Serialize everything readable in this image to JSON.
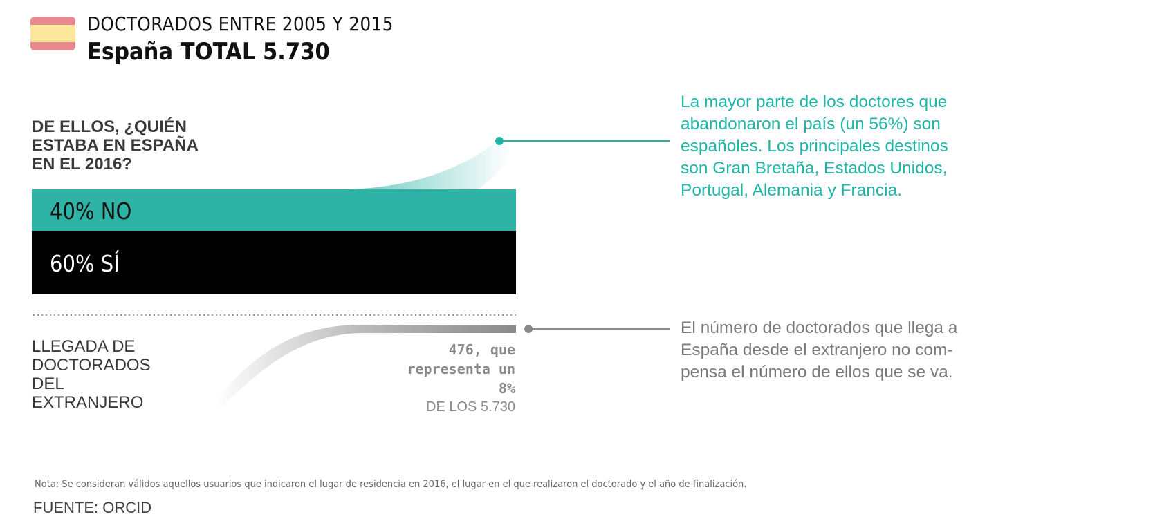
{
  "header": {
    "title": "DOCTORADOS ENTRE 2005 Y 2015",
    "subtitle": "España TOTAL 5.730",
    "flag_colors": [
      "#e68a8f",
      "#fde79c",
      "#e68a8f"
    ]
  },
  "question": "DE ELLOS, ¿QUIÉN\nESTABA EN ESPAÑA\nEN EL 2016?",
  "chart_data": {
    "type": "bar",
    "orientation": "horizontal-stacked",
    "total": 5730,
    "categories": [
      "NO",
      "SÍ"
    ],
    "values": [
      40,
      60
    ],
    "labels": [
      "40% NO",
      "60% SÍ"
    ],
    "colors": [
      "#2fb3a6",
      "#000000"
    ],
    "arrival": {
      "value": 476,
      "percent": 8,
      "color": "#8a8a8a"
    }
  },
  "annotations": {
    "emigrants": "La mayor parte de los doctores que\nabandonaron el país (un 56%) son\nespañoles. Los principales destinos\nson Gran Bretaña, Estados Unidos,\nPortugal, Alemania y Francia.",
    "immigrants": "El número de doctorados que llega a\nEspaña desde el extranjero no com-\npensa el número de ellos que se va."
  },
  "arrival_label": "LLEGADA DE\nDOCTORADOS\nDEL\nEXTRANJERO",
  "arrival_value_text": "476, que\nrepresenta un\n8%",
  "arrival_total_text": "DE LOS 5.730",
  "note": "Nota: Se consideran válidos aquellos usuarios  que indicaron el lugar de residencia en 2016, el lugar en el que realizaron el doctorado y el año de finalización.",
  "source": "FUENTE: ORCID",
  "colors": {
    "accent": "#1fb5a8",
    "grey_text": "#7a7a7a"
  }
}
